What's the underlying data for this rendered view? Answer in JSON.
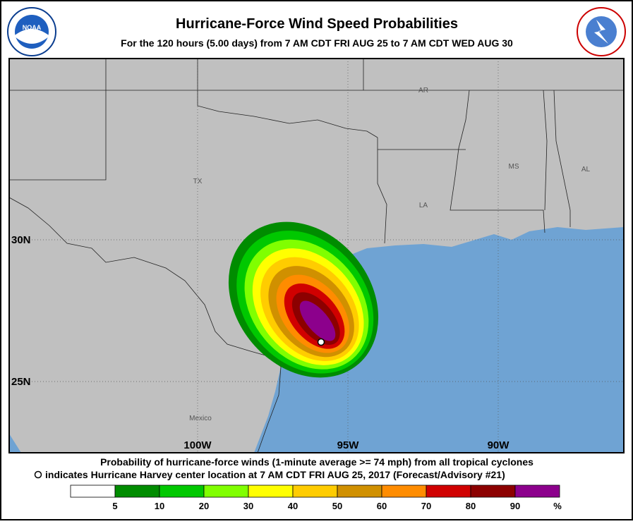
{
  "header": {
    "title": "Hurricane-Force Wind Speed Probabilities",
    "subtitle": "For the 120 hours (5.00 days) from 7 AM CDT FRI AUG 25 to 7 AM CDT WED AUG 30",
    "left_logo": "NOAA",
    "right_logo": "NATIONAL WEATHER SERVICE"
  },
  "map": {
    "labels": [
      "AR",
      "TX",
      "LA",
      "MS",
      "AL",
      "Mexico"
    ],
    "latitudes": [
      "30N",
      "25N"
    ],
    "longitudes": [
      "100W",
      "95W",
      "90W"
    ]
  },
  "legend": {
    "lines": [
      "Probability of hurricane-force winds (1-minute average >= 74 mph) from all tropical cyclones",
      "indicates Hurricane Harvey center location at 7 AM CDT FRI AUG 25, 2017 (Forecast/Advisory #21)"
    ],
    "colors": [
      "#ffffff",
      "#008c00",
      "#00c800",
      "#80ff00",
      "#ffff00",
      "#ffcc00",
      "#d09000",
      "#ff8c00",
      "#d00000",
      "#8c0000",
      "#8c008c"
    ],
    "ticks": [
      5,
      10,
      20,
      30,
      40,
      50,
      60,
      70,
      80,
      90
    ],
    "unit": "%"
  }
}
